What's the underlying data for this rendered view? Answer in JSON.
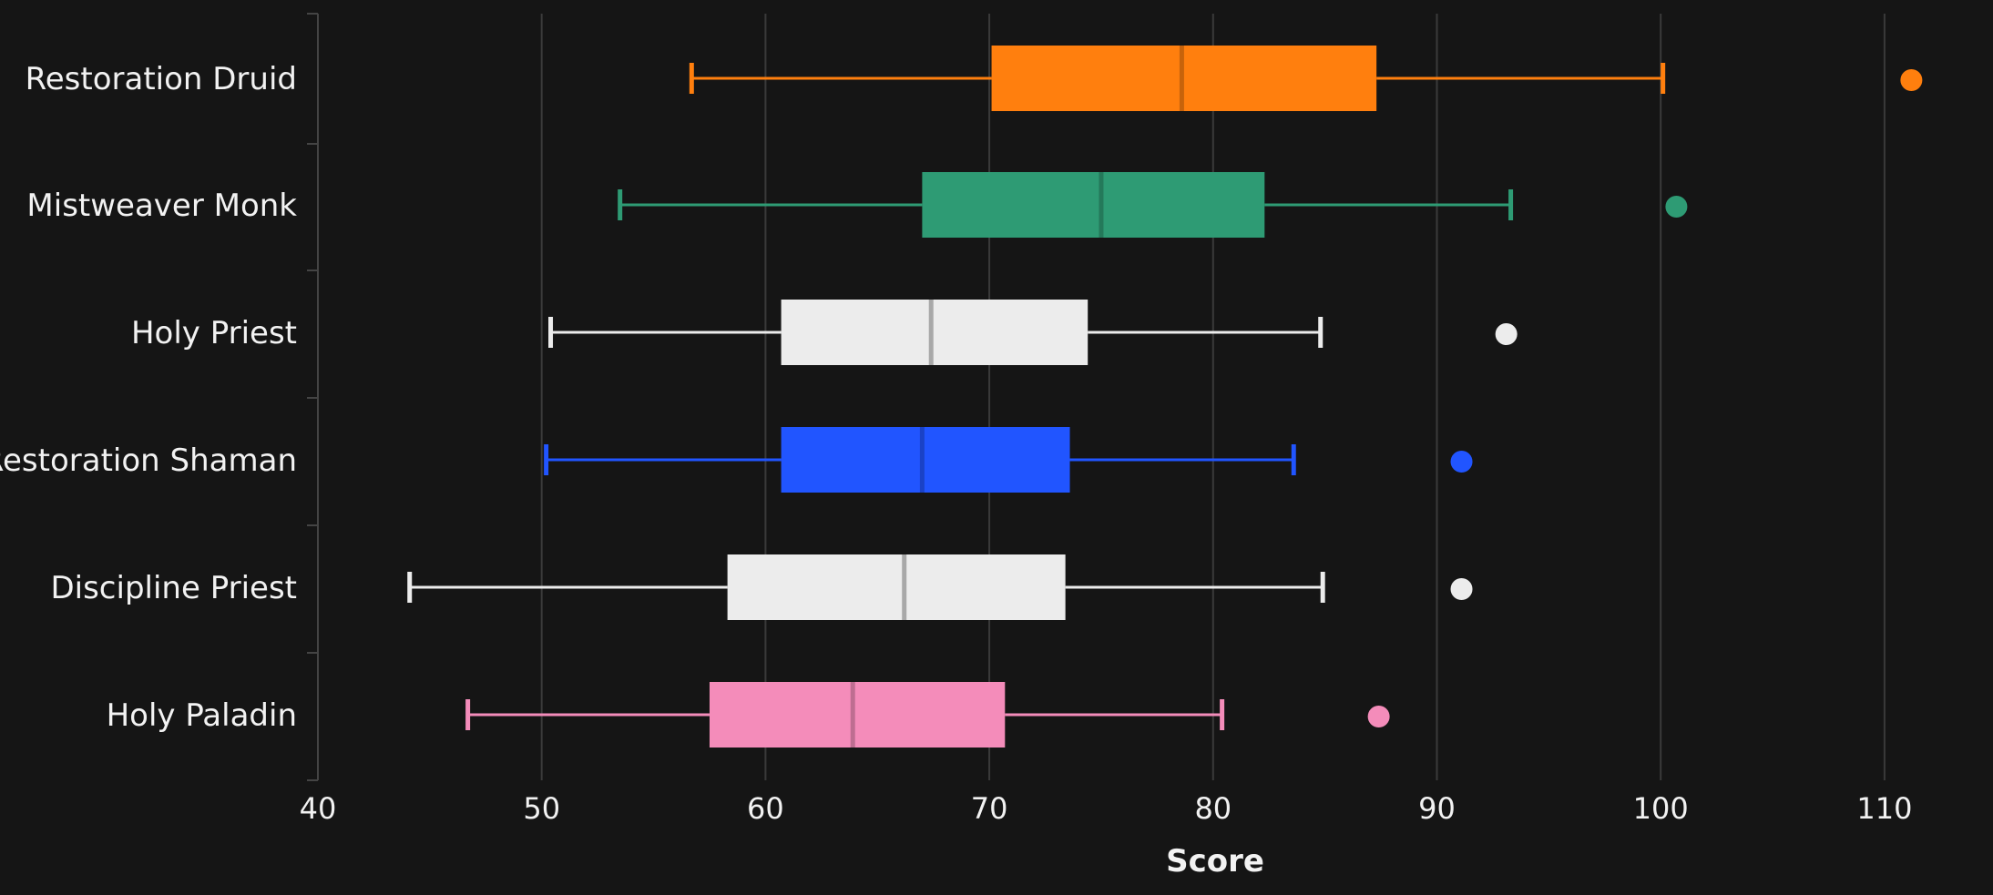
{
  "chart_data": {
    "type": "boxplot",
    "orientation": "horizontal",
    "title": "",
    "xlabel": "Score",
    "ylabel": "",
    "xlim": [
      40,
      112
    ],
    "xticks": [
      40,
      50,
      60,
      70,
      80,
      90,
      100,
      110
    ],
    "grid": "vertical",
    "background": "#151515",
    "series": [
      {
        "name": "Restoration Druid",
        "color": "#ff7f0e",
        "whisker_low": 56.7,
        "q1": 70.1,
        "median": 78.6,
        "q3": 87.3,
        "whisker_high": 100.1,
        "outliers": [
          111.2
        ]
      },
      {
        "name": "Mistweaver Monk",
        "color": "#2e9b74",
        "whisker_low": 53.5,
        "q1": 67.0,
        "median": 75.0,
        "q3": 82.3,
        "whisker_high": 93.3,
        "outliers": [
          100.7
        ]
      },
      {
        "name": "Holy Priest",
        "color": "#ececec",
        "whisker_low": 50.4,
        "q1": 60.7,
        "median": 67.4,
        "q3": 74.4,
        "whisker_high": 84.8,
        "outliers": [
          93.1
        ]
      },
      {
        "name": "Restoration Shaman",
        "color": "#2155ff",
        "whisker_low": 50.2,
        "q1": 60.7,
        "median": 67.0,
        "q3": 73.6,
        "whisker_high": 83.6,
        "outliers": [
          91.1
        ]
      },
      {
        "name": "Discipline Priest",
        "color": "#ececec",
        "whisker_low": 44.1,
        "q1": 58.3,
        "median": 66.2,
        "q3": 73.4,
        "whisker_high": 84.9,
        "outliers": [
          91.1
        ]
      },
      {
        "name": "Holy Paladin",
        "color": "#f48cba",
        "whisker_low": 46.7,
        "q1": 57.5,
        "median": 63.9,
        "q3": 70.7,
        "whisker_high": 80.4,
        "outliers": [
          87.4
        ]
      }
    ]
  }
}
